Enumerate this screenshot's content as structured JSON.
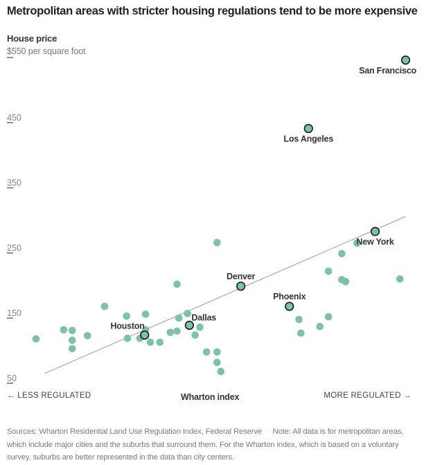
{
  "chart_data": {
    "type": "scatter",
    "title": "Metropolitan areas with stricter housing regulations tend to be more expensive",
    "ylabel": "House price",
    "ylabel_unit": "per square foot",
    "xlabel": "Wharton index",
    "x_left_label": "← LESS REGULATED",
    "x_right_label": "MORE REGULATED →",
    "ylim": [
      50,
      550
    ],
    "xlim": [
      -1.5,
      2.5
    ],
    "yticks": [
      {
        "value": 550,
        "label": "$550"
      },
      {
        "value": 450,
        "label": "450"
      },
      {
        "value": 350,
        "label": "350"
      },
      {
        "value": 250,
        "label": "250"
      },
      {
        "value": 150,
        "label": "150"
      },
      {
        "value": 50,
        "label": "50"
      }
    ],
    "grid": false,
    "trendline": {
      "x": [
        -1.41,
        2.38
      ],
      "y": [
        65,
        306
      ]
    },
    "highlighted": [
      {
        "name": "San Francisco",
        "x": 2.38,
        "y": 546,
        "label_pos": "below-left"
      },
      {
        "name": "Los Angeles",
        "x": 1.36,
        "y": 441,
        "label_pos": "below"
      },
      {
        "name": "New York",
        "x": 2.06,
        "y": 283,
        "label_pos": "below"
      },
      {
        "name": "Denver",
        "x": 0.65,
        "y": 199,
        "label_pos": "above"
      },
      {
        "name": "Phoenix",
        "x": 1.16,
        "y": 168,
        "label_pos": "above"
      },
      {
        "name": "Dallas",
        "x": 0.11,
        "y": 139,
        "label_pos": "above-right"
      },
      {
        "name": "Houston",
        "x": -0.36,
        "y": 124,
        "label_pos": "above-left"
      }
    ],
    "points": [
      {
        "x": -1.5,
        "y": 118
      },
      {
        "x": -1.21,
        "y": 132
      },
      {
        "x": -1.12,
        "y": 131
      },
      {
        "x": -1.12,
        "y": 116
      },
      {
        "x": -1.12,
        "y": 103
      },
      {
        "x": -0.96,
        "y": 123
      },
      {
        "x": -0.78,
        "y": 168
      },
      {
        "x": -0.55,
        "y": 153
      },
      {
        "x": -0.54,
        "y": 119
      },
      {
        "x": -0.41,
        "y": 119
      },
      {
        "x": -0.35,
        "y": 156
      },
      {
        "x": -0.35,
        "y": 132
      },
      {
        "x": -0.35,
        "y": 123
      },
      {
        "x": -0.3,
        "y": 113
      },
      {
        "x": -0.2,
        "y": 113
      },
      {
        "x": -0.09,
        "y": 128
      },
      {
        "x": -0.02,
        "y": 130
      },
      {
        "x": -0.02,
        "y": 202
      },
      {
        "x": 0.0,
        "y": 150
      },
      {
        "x": 0.09,
        "y": 157
      },
      {
        "x": 0.17,
        "y": 124
      },
      {
        "x": 0.22,
        "y": 136
      },
      {
        "x": 0.29,
        "y": 98
      },
      {
        "x": 0.4,
        "y": 98
      },
      {
        "x": 0.4,
        "y": 82
      },
      {
        "x": 0.44,
        "y": 68
      },
      {
        "x": 0.4,
        "y": 266
      },
      {
        "x": 1.28,
        "y": 127
      },
      {
        "x": 1.26,
        "y": 148
      },
      {
        "x": 1.48,
        "y": 137
      },
      {
        "x": 1.57,
        "y": 222
      },
      {
        "x": 1.71,
        "y": 209
      },
      {
        "x": 1.75,
        "y": 206
      },
      {
        "x": 1.71,
        "y": 249
      },
      {
        "x": 1.87,
        "y": 265
      },
      {
        "x": 1.57,
        "y": 152
      },
      {
        "x": 2.32,
        "y": 210
      }
    ],
    "colors": {
      "point": "#7cc3a6",
      "outline": "#1a1a1a",
      "trend": "#999999"
    }
  },
  "footer": {
    "sources": "Sources: Wharton Residential Land Use Regulation Index, Federal Reserve",
    "separator": "·",
    "note": "Note: All data is for metropolitan areas, which include major cities and the suburbs that surround them. For the Wharton index, which is based on a voluntary survey, suburbs are better represented in the data than city centers."
  }
}
